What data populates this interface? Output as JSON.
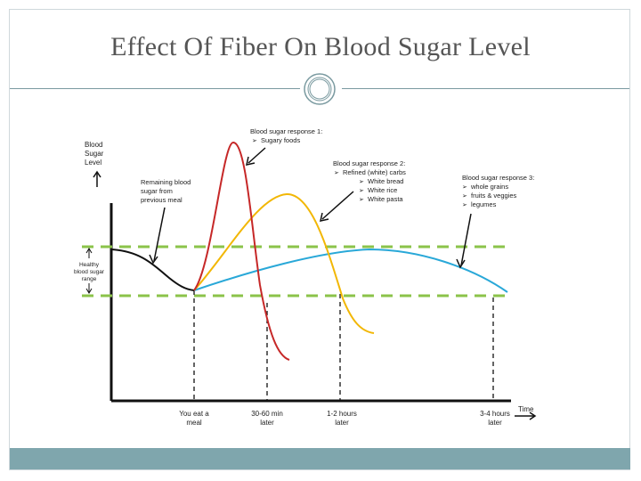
{
  "slide": {
    "title": "Effect Of Fiber On Blood Sugar Level"
  },
  "chart_data": {
    "type": "line",
    "y_axis_label": [
      "Blood",
      "Sugar",
      "Level"
    ],
    "x_axis_label": "Time",
    "range_label": [
      "Healthy",
      "blood sugar",
      "range"
    ],
    "x_ticks": [
      {
        "lines": [
          "You eat a",
          "meal"
        ]
      },
      {
        "lines": [
          "30-60 min",
          "later"
        ]
      },
      {
        "lines": [
          "1-2 hours",
          "later"
        ]
      },
      {
        "lines": [
          "3-4 hours",
          "later"
        ]
      }
    ],
    "annotations": {
      "remaining": [
        "Remaining blood",
        "sugar from",
        "previous meal"
      ],
      "response1": {
        "title": "Blood sugar response 1:",
        "items": [
          "Sugary foods"
        ]
      },
      "response2": {
        "title": "Blood sugar response 2:",
        "items": [
          "Refined (white) carbs",
          "White bread",
          "White rice",
          "White pasta"
        ]
      },
      "response3": {
        "title": "Blood sugar response 3:",
        "items": [
          "whole grains",
          "fruits & veggies",
          "legumes"
        ]
      }
    },
    "colors": {
      "previous": "#111111",
      "response1": "#c62828",
      "response2": "#f2b705",
      "response3": "#29a8d8",
      "range_lines": "#8bc34a"
    }
  }
}
